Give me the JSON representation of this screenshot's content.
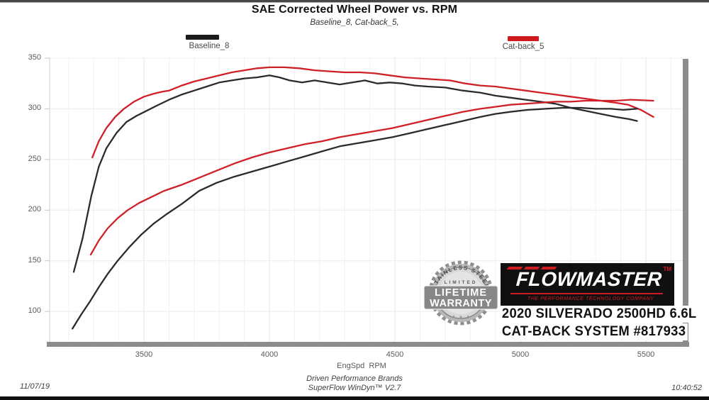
{
  "page": {
    "title": "SAE Corrected Wheel Power vs. RPM",
    "subtitle": "Baseline_8, Cat-back_5,"
  },
  "legend": [
    {
      "label": "Baseline_8",
      "color": "#1a1a1a"
    },
    {
      "label": "Cat-back_5",
      "color": "#d0191f"
    }
  ],
  "badge": {
    "arc_top": "STAINLESS STEEL",
    "limited": "LIMITED",
    "line1": "LIFETIME",
    "line2": "WARRANTY"
  },
  "logo": {
    "name": "FLOWMASTER",
    "tm": "TM",
    "tagline": "THE PERFORMANCE TECHNOLOGY COMPANY"
  },
  "vehicle": {
    "line1": "2020 SILVERADO 2500HD 6.6L",
    "line2": "CAT-BACK SYSTEM #817933"
  },
  "footer": {
    "date": "11/07/19",
    "brand": "Driven Performance Brands",
    "software": "SuperFlow WinDyn™ V2.7",
    "time": "10:40:52"
  },
  "colors": {
    "baseline": "#2b2b2b",
    "catback": "#cf2027",
    "grid_minor": "#f4f0f0",
    "grid_major": "#e9e4e4",
    "grid_horizontal": "#ececec",
    "axis_bar": "#8c8c8c"
  },
  "chart_data": {
    "type": "line",
    "title": "SAE Corrected Wheel Power vs. RPM",
    "subtitle": "Baseline_8, Cat-back_5,",
    "xlabel": "EngSpd  RPM",
    "ylabel": "",
    "legend_position": "top",
    "grid": true,
    "x_axis": {
      "min": 3124,
      "max": 5647,
      "ticks": [
        3500,
        4000,
        4500,
        5000,
        5500
      ],
      "minor_step": 100,
      "minor_start": 3200,
      "minor_end": 5600
    },
    "y_axis": {
      "min": 70,
      "max": 350,
      "ticks": [
        100,
        150,
        200,
        250,
        300,
        350
      ]
    },
    "series": [
      {
        "name": "Baseline_8 torque",
        "run": "Baseline_8",
        "color": "#2b2b2b",
        "points": [
          [
            3220,
            139
          ],
          [
            3255,
            172
          ],
          [
            3290,
            214
          ],
          [
            3320,
            243
          ],
          [
            3350,
            261
          ],
          [
            3390,
            276
          ],
          [
            3430,
            287
          ],
          [
            3470,
            293
          ],
          [
            3510,
            298
          ],
          [
            3550,
            303
          ],
          [
            3600,
            309
          ],
          [
            3650,
            314
          ],
          [
            3700,
            318
          ],
          [
            3750,
            322
          ],
          [
            3800,
            326
          ],
          [
            3850,
            328
          ],
          [
            3900,
            330
          ],
          [
            3950,
            331
          ],
          [
            4000,
            333
          ],
          [
            4040,
            331
          ],
          [
            4080,
            328
          ],
          [
            4130,
            326
          ],
          [
            4180,
            328
          ],
          [
            4230,
            326
          ],
          [
            4280,
            324
          ],
          [
            4330,
            326
          ],
          [
            4380,
            328
          ],
          [
            4430,
            325
          ],
          [
            4480,
            326
          ],
          [
            4530,
            325
          ],
          [
            4580,
            323
          ],
          [
            4630,
            322
          ],
          [
            4700,
            321
          ],
          [
            4770,
            318
          ],
          [
            4840,
            316
          ],
          [
            4900,
            313
          ],
          [
            4960,
            311
          ],
          [
            5020,
            309
          ],
          [
            5080,
            307
          ],
          [
            5140,
            305
          ],
          [
            5200,
            301
          ],
          [
            5260,
            298
          ],
          [
            5320,
            295
          ],
          [
            5380,
            292
          ],
          [
            5430,
            290
          ],
          [
            5465,
            288
          ]
        ]
      },
      {
        "name": "Cat-back_5 torque",
        "run": "Cat-back_5",
        "color": "#cf2027",
        "points": [
          [
            3294,
            252
          ],
          [
            3320,
            268
          ],
          [
            3350,
            281
          ],
          [
            3385,
            292
          ],
          [
            3420,
            300
          ],
          [
            3460,
            307
          ],
          [
            3500,
            312
          ],
          [
            3540,
            315
          ],
          [
            3575,
            317
          ],
          [
            3600,
            318
          ],
          [
            3650,
            323
          ],
          [
            3700,
            327
          ],
          [
            3750,
            330
          ],
          [
            3800,
            333
          ],
          [
            3850,
            336
          ],
          [
            3900,
            338
          ],
          [
            3950,
            340
          ],
          [
            4000,
            341
          ],
          [
            4060,
            341
          ],
          [
            4120,
            340
          ],
          [
            4180,
            338
          ],
          [
            4240,
            337
          ],
          [
            4300,
            336
          ],
          [
            4360,
            336
          ],
          [
            4420,
            335
          ],
          [
            4480,
            333
          ],
          [
            4540,
            331
          ],
          [
            4600,
            330
          ],
          [
            4660,
            329
          ],
          [
            4720,
            328
          ],
          [
            4780,
            325
          ],
          [
            4840,
            323
          ],
          [
            4900,
            322
          ],
          [
            4960,
            320
          ],
          [
            5020,
            318
          ],
          [
            5080,
            316
          ],
          [
            5140,
            314
          ],
          [
            5200,
            312
          ],
          [
            5260,
            310
          ],
          [
            5320,
            308
          ],
          [
            5380,
            306
          ],
          [
            5430,
            304
          ],
          [
            5480,
            299
          ],
          [
            5530,
            292
          ]
        ]
      },
      {
        "name": "Baseline_8 power",
        "run": "Baseline_8",
        "color": "#2b2b2b",
        "points": [
          [
            3215,
            83
          ],
          [
            3250,
            97
          ],
          [
            3285,
            110
          ],
          [
            3320,
            124
          ],
          [
            3355,
            137
          ],
          [
            3395,
            150
          ],
          [
            3440,
            163
          ],
          [
            3490,
            176
          ],
          [
            3540,
            187
          ],
          [
            3590,
            196
          ],
          [
            3650,
            206
          ],
          [
            3720,
            219
          ],
          [
            3790,
            227
          ],
          [
            3860,
            233
          ],
          [
            3930,
            238
          ],
          [
            4000,
            243
          ],
          [
            4070,
            248
          ],
          [
            4140,
            253
          ],
          [
            4210,
            258
          ],
          [
            4280,
            263
          ],
          [
            4350,
            266
          ],
          [
            4420,
            269
          ],
          [
            4490,
            272
          ],
          [
            4560,
            276
          ],
          [
            4630,
            280
          ],
          [
            4700,
            284
          ],
          [
            4770,
            288
          ],
          [
            4840,
            292
          ],
          [
            4900,
            295
          ],
          [
            4960,
            297
          ],
          [
            5030,
            299
          ],
          [
            5100,
            300
          ],
          [
            5170,
            301
          ],
          [
            5240,
            301
          ],
          [
            5300,
            300
          ],
          [
            5360,
            300
          ],
          [
            5410,
            299
          ],
          [
            5465,
            300
          ]
        ]
      },
      {
        "name": "Cat-back_5 power",
        "run": "Cat-back_5",
        "color": "#cf2027",
        "points": [
          [
            3288,
            156
          ],
          [
            3320,
            170
          ],
          [
            3355,
            182
          ],
          [
            3395,
            192
          ],
          [
            3435,
            200
          ],
          [
            3480,
            207
          ],
          [
            3530,
            213
          ],
          [
            3580,
            219
          ],
          [
            3650,
            225
          ],
          [
            3720,
            232
          ],
          [
            3790,
            239
          ],
          [
            3860,
            246
          ],
          [
            3930,
            252
          ],
          [
            4000,
            257
          ],
          [
            4070,
            261
          ],
          [
            4140,
            265
          ],
          [
            4210,
            268
          ],
          [
            4280,
            272
          ],
          [
            4350,
            275
          ],
          [
            4420,
            278
          ],
          [
            4490,
            281
          ],
          [
            4560,
            285
          ],
          [
            4630,
            289
          ],
          [
            4700,
            293
          ],
          [
            4770,
            297
          ],
          [
            4840,
            300
          ],
          [
            4900,
            302
          ],
          [
            4960,
            304
          ],
          [
            5020,
            305
          ],
          [
            5080,
            306
          ],
          [
            5140,
            307
          ],
          [
            5200,
            307
          ],
          [
            5260,
            308
          ],
          [
            5320,
            308
          ],
          [
            5380,
            308
          ],
          [
            5440,
            309
          ],
          [
            5530,
            308
          ]
        ]
      }
    ]
  }
}
